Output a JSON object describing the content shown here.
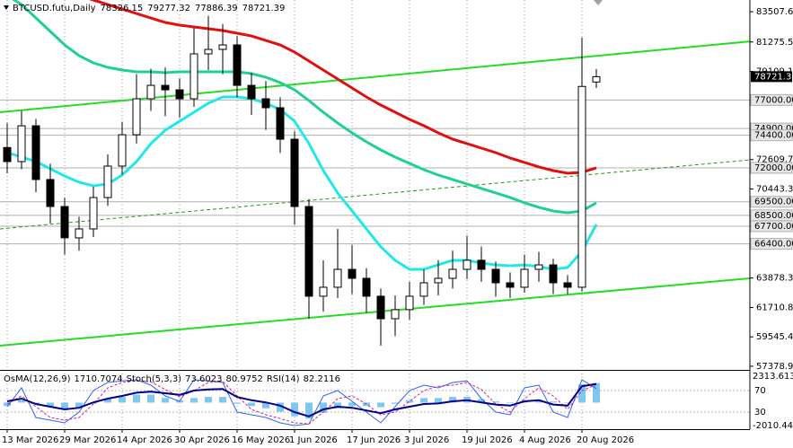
{
  "chart_data": {
    "type": "candlestick",
    "title": "BTCUSD.futu,Daily",
    "categories": [
      "13 Mar 2026",
      null,
      null,
      null,
      "29 Mar 2026",
      null,
      null,
      null,
      "14 Apr 2026",
      null,
      null,
      null,
      "30 Apr 2026",
      null,
      null,
      null,
      "16 May 2026",
      null,
      null,
      null,
      "1 Jun 2026",
      null,
      null,
      null,
      "17 Jun 2026",
      null,
      null,
      null,
      "3 Jul 2026",
      null,
      null,
      null,
      "19 Jul 2026",
      null,
      null,
      null,
      "4 Aug 2026",
      null,
      null,
      null,
      "20 Aug 2026",
      null
    ],
    "ohlc": [
      [
        73500,
        75300,
        71600,
        72460
      ],
      [
        72460,
        76200,
        71900,
        75100
      ],
      [
        75100,
        75600,
        70200,
        71140
      ],
      [
        71140,
        72300,
        67900,
        69150
      ],
      [
        69150,
        69800,
        65600,
        66840
      ],
      [
        66840,
        68400,
        65900,
        67500
      ],
      [
        67500,
        70600,
        66900,
        69810
      ],
      [
        69810,
        73000,
        69200,
        72130
      ],
      [
        72130,
        75400,
        71500,
        74440
      ],
      [
        74440,
        78900,
        73800,
        77090
      ],
      [
        77090,
        79300,
        76200,
        78080
      ],
      [
        78080,
        79400,
        75800,
        77750
      ],
      [
        77750,
        78600,
        75700,
        77090
      ],
      [
        77090,
        82300,
        76500,
        80400
      ],
      [
        80400,
        83200,
        79200,
        80730
      ],
      [
        80730,
        82600,
        78900,
        81060
      ],
      [
        81060,
        81700,
        77200,
        78080
      ],
      [
        78080,
        79000,
        75900,
        77090
      ],
      [
        77090,
        78400,
        74800,
        76430
      ],
      [
        76430,
        77200,
        73100,
        74110
      ],
      [
        74110,
        74700,
        67800,
        69150
      ],
      [
        69150,
        69700,
        60900,
        62540
      ],
      [
        62540,
        65200,
        61400,
        63200
      ],
      [
        63200,
        67500,
        62400,
        64520
      ],
      [
        64520,
        66300,
        62700,
        63860
      ],
      [
        63860,
        64600,
        61300,
        62540
      ],
      [
        62540,
        63100,
        58900,
        60880
      ],
      [
        60880,
        62600,
        59600,
        61550
      ],
      [
        61550,
        63600,
        60800,
        62540
      ],
      [
        62540,
        64500,
        61900,
        63530
      ],
      [
        63530,
        65200,
        62600,
        63860
      ],
      [
        63860,
        65900,
        63100,
        64520
      ],
      [
        64520,
        67000,
        63800,
        65190
      ],
      [
        65190,
        66200,
        63600,
        64520
      ],
      [
        64520,
        65100,
        62500,
        63530
      ],
      [
        63530,
        64300,
        62400,
        63200
      ],
      [
        63200,
        65600,
        62800,
        64520
      ],
      [
        64520,
        65800,
        63600,
        64850
      ],
      [
        64850,
        65300,
        62700,
        63530
      ],
      [
        63530,
        64100,
        62700,
        63200
      ],
      [
        63200,
        81600,
        62900,
        78000
      ],
      [
        78326.15,
        79277.32,
        77886.39,
        78721.39
      ]
    ],
    "up_color": "#ffffff",
    "down_color": "#000000",
    "ylim": [
      57110,
      84370
    ],
    "yticks": [
      {
        "value": 83507.6,
        "label": "83507.60"
      },
      {
        "value": 81275.5,
        "label": "81275.50"
      },
      {
        "value": 79109.1,
        "label": "79109.10"
      },
      {
        "value": 72609.76,
        "label": "72609.76"
      },
      {
        "value": 70443.3,
        "label": "70443.30"
      },
      {
        "value": 63878.3,
        "label": "63878.30"
      },
      {
        "value": 61710.85,
        "label": "61710.85"
      },
      {
        "value": 59545.4,
        "label": "59545.40"
      },
      {
        "value": 57378.95,
        "label": "57378.95"
      }
    ],
    "levels": [
      {
        "value": 77000,
        "label": "77000.00"
      },
      {
        "value": 74900,
        "label": "74900.00"
      },
      {
        "value": 74400,
        "label": "74400.00"
      },
      {
        "value": 72000,
        "label": "72000.00"
      },
      {
        "value": 69500,
        "label": "69500.00"
      },
      {
        "value": 68500,
        "label": "68500.00"
      },
      {
        "value": 67700,
        "label": "67700.00"
      },
      {
        "value": 66400,
        "label": "66400.00"
      }
    ],
    "level_color": "#b0b0b0",
    "moving_averages": [
      {
        "color": "#e01010",
        "values": [
          86352,
          86022,
          85691,
          85360,
          85029,
          84698,
          84368,
          84037,
          83706,
          83376,
          83045,
          82714,
          82516,
          82384,
          82251,
          82119,
          81920,
          81722,
          81391,
          81060,
          80531,
          79870,
          79208,
          78547,
          77885,
          77224,
          76628,
          76099,
          75570,
          75107,
          74578,
          74115,
          73784,
          73453,
          73123,
          72726,
          72395,
          72064,
          71800,
          71601,
          71667,
          71998
        ]
      },
      {
        "color": "#20d090",
        "values": [
          84698,
          84037,
          83045,
          82053,
          81060,
          80267,
          79738,
          79407,
          79208,
          79076,
          79076,
          79010,
          79076,
          79076,
          79076,
          79076,
          79076,
          78944,
          78679,
          78282,
          77753,
          76959,
          76099,
          75305,
          74578,
          73916,
          73321,
          72792,
          72329,
          71865,
          71469,
          71138,
          70807,
          70477,
          70146,
          69815,
          69418,
          69088,
          68823,
          68691,
          68823,
          69418
        ]
      },
      {
        "color": "#20e8e8",
        "values": [
          73122,
          72792,
          72461,
          71932,
          71403,
          70940,
          70675,
          70807,
          71469,
          72461,
          73784,
          74776,
          75438,
          76099,
          76760,
          77224,
          77224,
          77092,
          76760,
          76297,
          75438,
          73784,
          71800,
          70146,
          68823,
          67500,
          66177,
          65184,
          64523,
          64523,
          64853,
          65184,
          65184,
          64985,
          64853,
          64787,
          64853,
          64721,
          64523,
          64655,
          65846,
          67830
        ]
      }
    ],
    "trendlines": [
      {
        "values": [
          76100,
          81320
        ],
        "color": "#22dd22"
      },
      {
        "values": [
          58900,
          63860
        ],
        "color": "#22dd22"
      },
      {
        "values": [
          67500,
          72590
        ],
        "color": "#1a9a1a",
        "dashed": true
      }
    ],
    "indicators": {
      "ylim": [
        0,
        100
      ],
      "yticks": [
        70,
        30
      ],
      "osma": {
        "name": "OsMA(12,26,9)",
        "color": "#7ec8f0",
        "ylim": [
          -2010.441,
          2313.6133
        ],
        "yticks": [
          2313.6133,
          -2010.441
        ],
        "values": [
          -300,
          200,
          -100,
          -400,
          -600,
          -500,
          -100,
          300,
          500,
          700,
          700,
          400,
          200,
          400,
          500,
          500,
          -100,
          -300,
          -500,
          -800,
          -1200,
          -1400,
          -900,
          -500,
          -300,
          -300,
          -400,
          -100,
          200,
          400,
          400,
          500,
          500,
          300,
          100,
          -50,
          150,
          250,
          100,
          -50,
          1600,
          1710.7074
        ]
      },
      "stoch": {
        "name": "Stoch(5,3,3)",
        "series": [
          {
            "color": "#3060ff",
            "values": [
              40,
              75,
              20,
              15,
              10,
              30,
              70,
              85,
              88,
              90,
              80,
              60,
              50,
              90,
              88,
              85,
              30,
              25,
              20,
              10,
              5,
              8,
              60,
              70,
              50,
              30,
              10,
              40,
              70,
              80,
              75,
              85,
              88,
              55,
              30,
              25,
              75,
              80,
              30,
              20,
              90,
              73.6023
            ]
          },
          {
            "color": "#d02090",
            "values": [
              45,
              60,
              40,
              20,
              15,
              20,
              45,
              75,
              85,
              88,
              86,
              72,
              58,
              70,
              85,
              87,
              60,
              35,
              25,
              18,
              10,
              8,
              30,
              55,
              60,
              45,
              25,
              30,
              50,
              70,
              78,
              80,
              85,
              72,
              45,
              30,
              55,
              75,
              60,
              35,
              70,
              80.9752
            ]
          }
        ]
      },
      "rsi": {
        "name": "RSI(14)",
        "color": "#00008b",
        "values": [
          50,
          55,
          45,
          40,
          35,
          38,
          48,
          55,
          60,
          66,
          68,
          65,
          62,
          70,
          72,
          73,
          58,
          52,
          48,
          42,
          30,
          22,
          35,
          40,
          38,
          33,
          28,
          35,
          40,
          45,
          46,
          50,
          52,
          48,
          44,
          42,
          50,
          52,
          44,
          42,
          78,
          82.2116
        ]
      }
    }
  }
}
